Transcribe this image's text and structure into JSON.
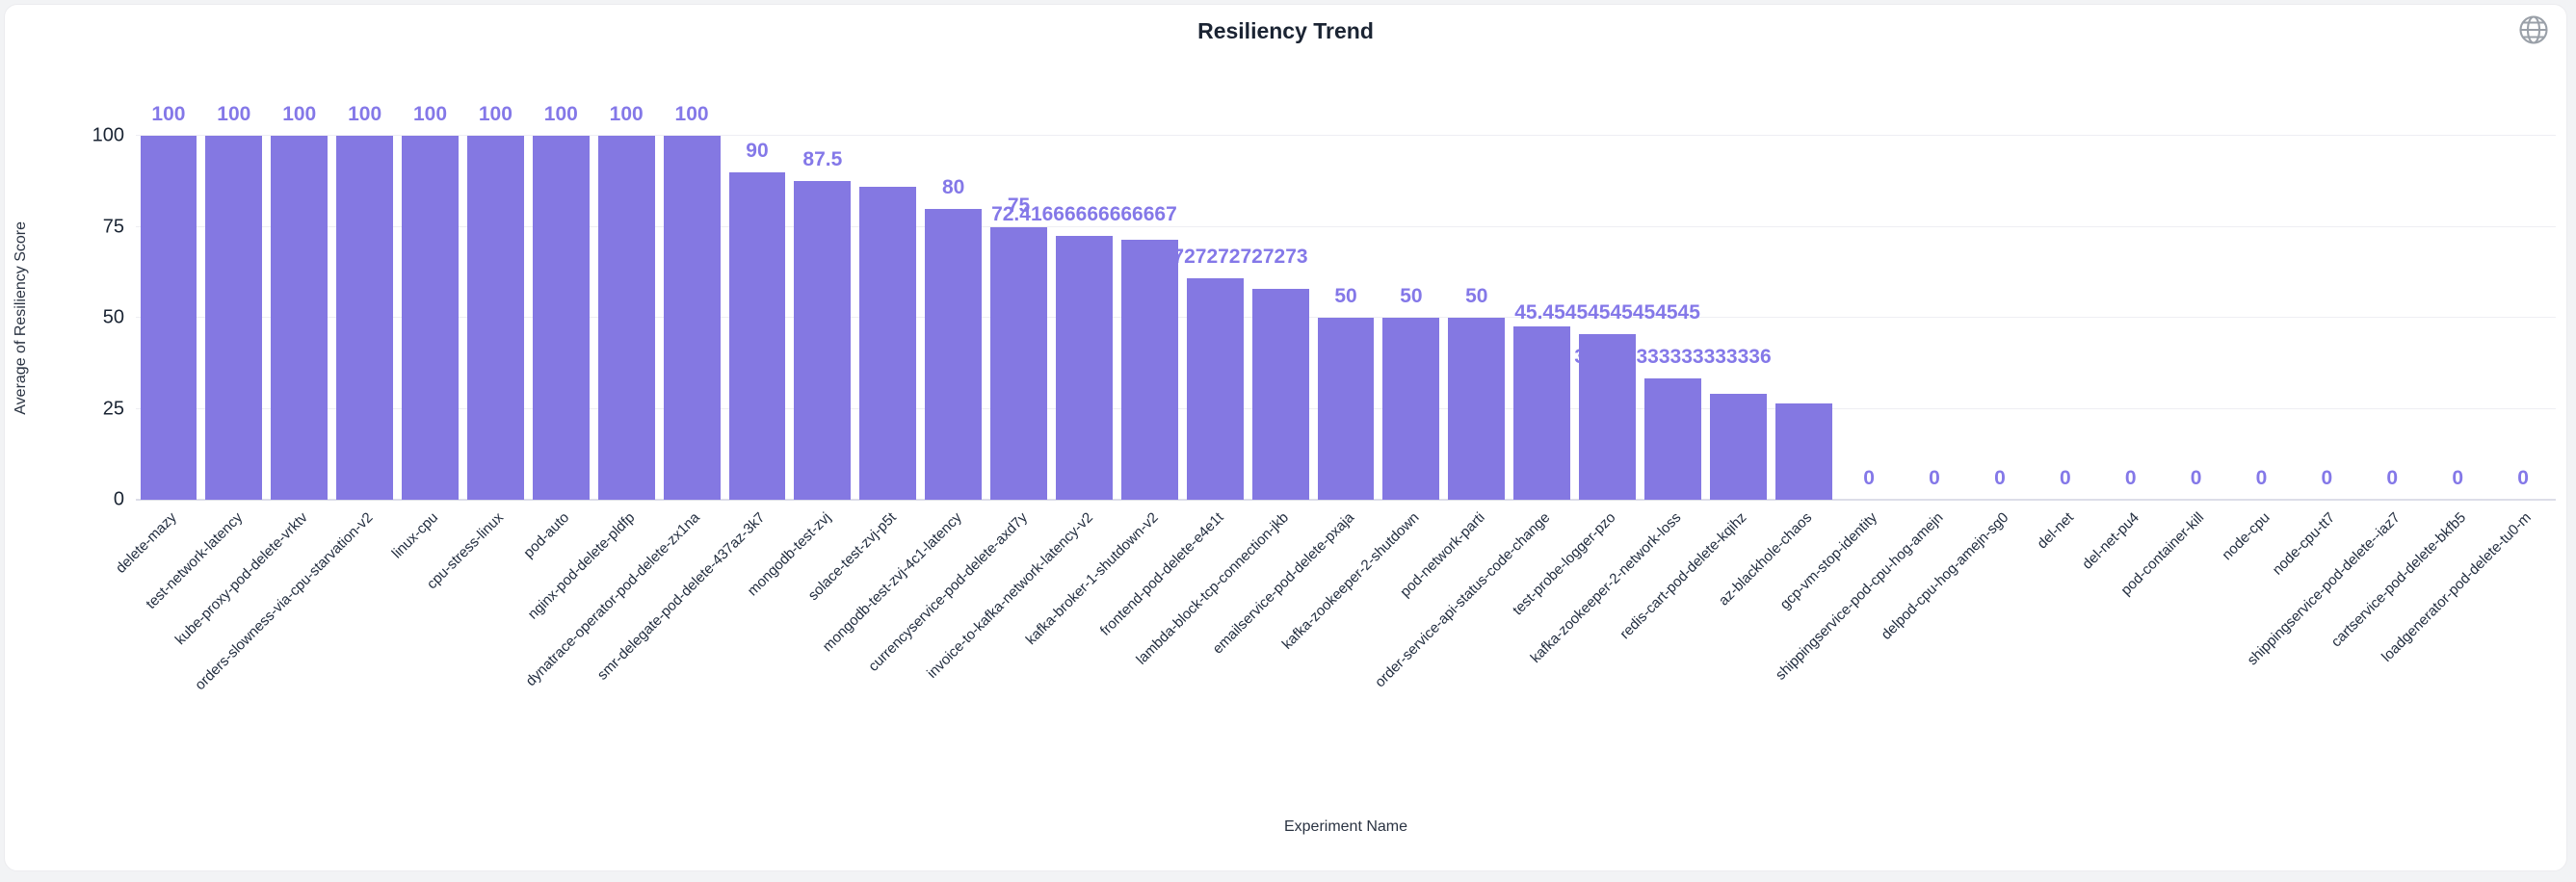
{
  "title": "Resiliency Trend",
  "y_axis_title": "Average of Resiliency Score",
  "x_axis_title": "Experiment Name",
  "icons": {
    "top_right": "globe-icon"
  },
  "colors": {
    "bar": "#8478e2",
    "value_label": "#8478e8",
    "grid": "#eeeef3",
    "axis_line": "#dcdde8",
    "tick_text": "#1a2433",
    "category_text": "#222d3f",
    "card_background": "#ffffff",
    "page_background": "#f2f3f5"
  },
  "chart_data": {
    "type": "bar",
    "title": "Resiliency Trend",
    "xlabel": "Experiment Name",
    "ylabel": "Average of Resiliency Score",
    "ylim": [
      0,
      100
    ],
    "yticks": [
      0,
      25,
      50,
      75,
      100
    ],
    "grid": true,
    "legend": "none",
    "categories": [
      "delete-mazy",
      "test-network-latency",
      "kube-proxy-pod-delete-vrktv",
      "orders-slowness-via-cpu-starvation-v2",
      "linux-cpu",
      "cpu-stress-linux",
      "pod-auto",
      "nginx-pod-delete-pldfp",
      "dynatrace-operator-pod-delete-zx1na",
      "smr-delegate-pod-delete-437az-3k7",
      "mongodb-test-zvj",
      "solace-test-zvj-p5t",
      "mongodb-test-zvj-4c1-latency",
      "currencyservice-pod-delete-axd7y",
      "invoice-to-kafka-network-latency-v2",
      "kafka-broker-1-shutdown-v2",
      "frontend-pod-delete-e4e1t",
      "lambda-block-tcp-connection-jkb",
      "emailservice-pod-delete-pxaja",
      "kafka-zookeeper-2-shutdown",
      "pod-network-parti",
      "order-service-api-status-code-change",
      "test-probe-logger-pzo",
      "kafka-zookeeper-2-network-loss",
      "redis-cart-pod-delete-kqihz",
      "az-blackhole-chaos",
      "gcp-vm-stop-identity",
      "shippingservice-pod-cpu-hog-amejn",
      "delpod-cpu-hog-amejn-sg0",
      "del-net",
      "del-net-pu4",
      "pod-container-kill",
      "node-cpu",
      "node-cpu-tt7",
      "shippingservice-pod-delete--iaz7",
      "cartservice-pod-delete-bkfb5",
      "loadgenerator-pod-delete-tu0-m"
    ],
    "values": [
      100,
      100,
      100,
      100,
      100,
      100,
      100,
      100,
      100,
      90,
      87.5,
      86,
      80,
      75,
      72.41666666666667,
      71.4,
      60.72727272727273,
      57.9,
      50,
      50,
      50,
      47.6,
      45.45454545454545,
      33.333333333333336,
      29.1,
      26.5,
      0,
      0,
      0,
      0,
      0,
      0,
      0,
      0,
      0,
      0,
      0
    ],
    "value_labels": [
      "100",
      "100",
      "100",
      "100",
      "100",
      "100",
      "100",
      "100",
      "100",
      "90",
      "87.5",
      "",
      "80",
      "75",
      "72.41666666666667",
      "",
      "60.72727272727273",
      "",
      "50",
      "50",
      "50",
      "",
      "45.45454545454545",
      "33.333333333333336",
      "",
      "",
      "0",
      "0",
      "0",
      "0",
      "0",
      "0",
      "0",
      "0",
      "0",
      "0",
      "0"
    ]
  }
}
